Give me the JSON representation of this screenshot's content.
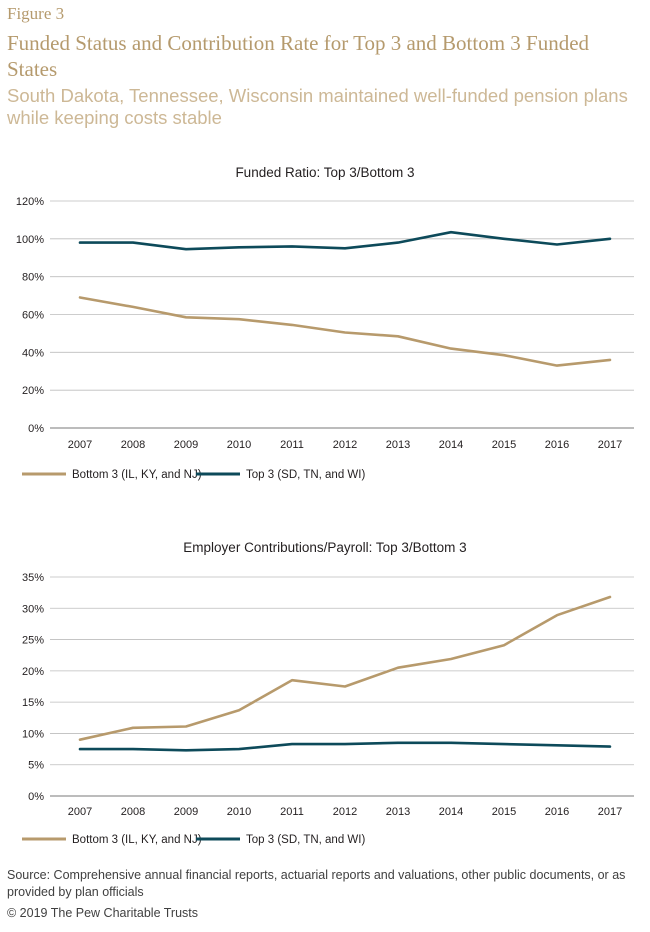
{
  "figure_label": "Figure 3",
  "title": "Funded Status and Contribution Rate for Top 3 and Bottom 3 Funded States",
  "subtitle": "South Dakota, Tennessee, Wisconsin maintained well-funded pension plans while keeping costs stable",
  "source": "Source: Comprehensive annual financial reports, actuarial reports and valuations, other public documents, or as provided by plan officials",
  "copyright": "© 2019 The Pew Charitable Trusts",
  "colors": {
    "bottom3": "#b79a6c",
    "top3": "#0d4a5a",
    "grid": "#bdbdbd",
    "axis": "#7a7a7a"
  },
  "chart_data": [
    {
      "type": "line",
      "title": "Funded Ratio: Top 3/Bottom 3",
      "x": [
        "2007",
        "2008",
        "2009",
        "2010",
        "2011",
        "2012",
        "2013",
        "2014",
        "2015",
        "2016",
        "2017"
      ],
      "yticks": [
        "0%",
        "20%",
        "40%",
        "60%",
        "80%",
        "100%",
        "120%"
      ],
      "ylim": [
        0,
        120
      ],
      "grid": true,
      "legend_position": "bottom-left",
      "series": [
        {
          "name": "Bottom 3 (IL, KY, and NJ)",
          "color": "#b79a6c",
          "values": [
            69,
            64,
            58.5,
            57.5,
            54.5,
            50.5,
            48.5,
            42,
            38.5,
            33,
            36
          ]
        },
        {
          "name": "Top 3 (SD, TN, and WI)",
          "color": "#0d4a5a",
          "values": [
            98,
            98,
            94.5,
            95.5,
            96,
            95,
            98,
            103.5,
            100,
            97,
            100
          ]
        }
      ]
    },
    {
      "type": "line",
      "title": "Employer Contributions/Payroll: Top 3/Bottom 3",
      "x": [
        "2007",
        "2008",
        "2009",
        "2010",
        "2011",
        "2012",
        "2013",
        "2014",
        "2015",
        "2016",
        "2017"
      ],
      "yticks": [
        "0%",
        "5%",
        "10%",
        "15%",
        "20%",
        "25%",
        "30%",
        "35%"
      ],
      "ylim": [
        0,
        35
      ],
      "grid": true,
      "legend_position": "bottom-left",
      "series": [
        {
          "name": "Bottom 3 (IL, KY, and NJ)",
          "color": "#b79a6c",
          "values": [
            9,
            10.9,
            11.1,
            13.7,
            18.5,
            17.5,
            20.5,
            21.9,
            24.1,
            28.9,
            31.8
          ]
        },
        {
          "name": "Top 3 (SD, TN, and WI)",
          "color": "#0d4a5a",
          "values": [
            7.5,
            7.5,
            7.3,
            7.5,
            8.3,
            8.3,
            8.5,
            8.5,
            8.3,
            8.1,
            7.9
          ]
        }
      ]
    }
  ]
}
